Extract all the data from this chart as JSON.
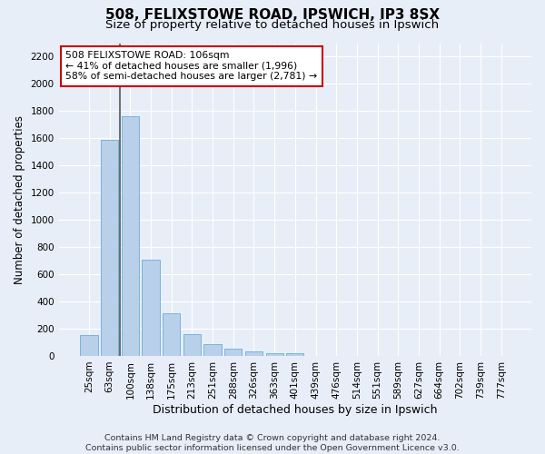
{
  "title1": "508, FELIXSTOWE ROAD, IPSWICH, IP3 8SX",
  "title2": "Size of property relative to detached houses in Ipswich",
  "xlabel": "Distribution of detached houses by size in Ipswich",
  "ylabel": "Number of detached properties",
  "footer1": "Contains HM Land Registry data © Crown copyright and database right 2024.",
  "footer2": "Contains public sector information licensed under the Open Government Licence v3.0.",
  "categories": [
    "25sqm",
    "63sqm",
    "100sqm",
    "138sqm",
    "175sqm",
    "213sqm",
    "251sqm",
    "288sqm",
    "326sqm",
    "363sqm",
    "401sqm",
    "439sqm",
    "476sqm",
    "514sqm",
    "551sqm",
    "589sqm",
    "627sqm",
    "664sqm",
    "702sqm",
    "739sqm",
    "777sqm"
  ],
  "values": [
    155,
    1590,
    1760,
    710,
    315,
    160,
    85,
    52,
    32,
    22,
    18,
    0,
    0,
    0,
    0,
    0,
    0,
    0,
    0,
    0,
    0
  ],
  "bar_color": "#b8d0ea",
  "bar_edge_color": "#6baed6",
  "vline_color": "#555555",
  "vline_x_index": 2,
  "annotation_text1": "508 FELIXSTOWE ROAD: 106sqm",
  "annotation_text2": "← 41% of detached houses are smaller (1,996)",
  "annotation_text3": "58% of semi-detached houses are larger (2,781) →",
  "annotation_box_facecolor": "#ffffff",
  "annotation_box_edgecolor": "#cc0000",
  "ylim": [
    0,
    2300
  ],
  "yticks": [
    0,
    200,
    400,
    600,
    800,
    1000,
    1200,
    1400,
    1600,
    1800,
    2000,
    2200
  ],
  "background_color": "#e8eef8",
  "grid_color": "#ffffff",
  "title1_fontsize": 11,
  "title2_fontsize": 9.5,
  "ylabel_fontsize": 8.5,
  "xlabel_fontsize": 9,
  "tick_fontsize": 7.5,
  "annotation_fontsize": 7.8,
  "footer_fontsize": 6.8
}
